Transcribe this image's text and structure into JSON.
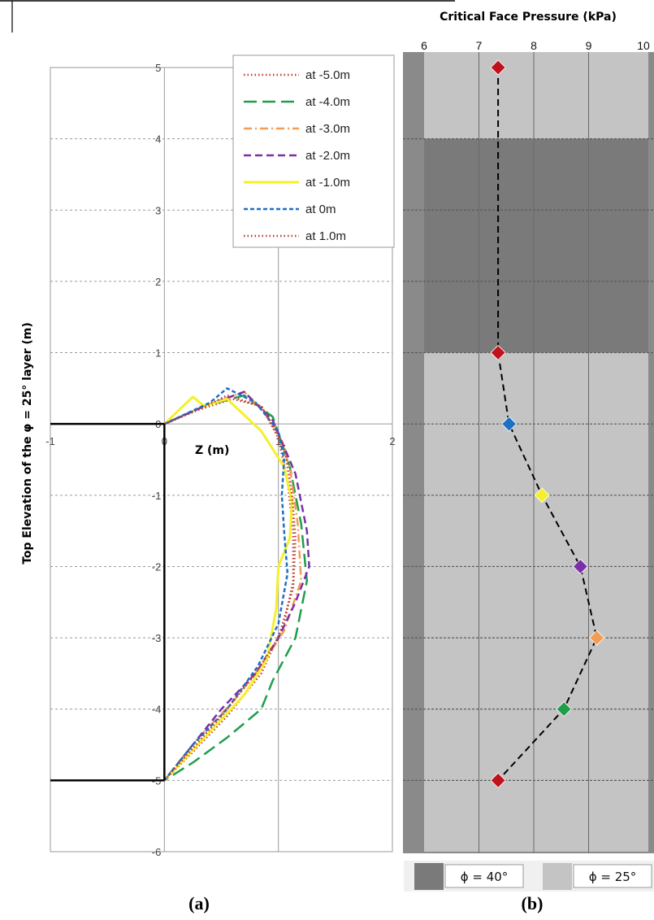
{
  "panel_labels": {
    "a": "(a)",
    "b": "(b)"
  },
  "chart_data": [
    {
      "type": "line",
      "panel": "a",
      "title": "",
      "xlabel": "Z (m)",
      "ylabel": "Top  Elevation  of  the  φ = 25°  layer  (m)",
      "xlim": [
        -1,
        2
      ],
      "ylim": [
        -6,
        5
      ],
      "x_ticks": [
        "-1",
        "0",
        "1",
        "2"
      ],
      "y_ticks": [
        "5",
        "4",
        "3",
        "2",
        "1",
        "0",
        "-1",
        "-2",
        "-3",
        "-4",
        "-5",
        "-6"
      ],
      "grid": true,
      "legend_position": "top-right",
      "tunnel_outline": {
        "face_top": 0,
        "face_bottom": -5,
        "axis_x": 0
      },
      "series": [
        {
          "name": "at -5.0m",
          "color": "#c0392b",
          "dash": "dotted",
          "points": [
            [
              0,
              0
            ],
            [
              0.3,
              0.2
            ],
            [
              0.6,
              0.35
            ],
            [
              0.85,
              0.25
            ],
            [
              1.0,
              -0.2
            ],
            [
              1.08,
              -0.8
            ],
            [
              1.13,
              -1.5
            ],
            [
              1.13,
              -2.2
            ],
            [
              1.05,
              -2.8
            ],
            [
              0.85,
              -3.5
            ],
            [
              0.55,
              -4.1
            ],
            [
              0.25,
              -4.6
            ],
            [
              0,
              -5
            ]
          ]
        },
        {
          "name": "at -4.0m",
          "color": "#1f9e4a",
          "dash": "longdash",
          "points": [
            [
              0,
              0
            ],
            [
              0.35,
              0.25
            ],
            [
              0.7,
              0.4
            ],
            [
              0.95,
              0.1
            ],
            [
              1.1,
              -0.6
            ],
            [
              1.2,
              -1.4
            ],
            [
              1.25,
              -2.2
            ],
            [
              1.15,
              -3.0
            ],
            [
              0.95,
              -3.6
            ],
            [
              0.85,
              -4.0
            ],
            [
              0.55,
              -4.4
            ],
            [
              0.25,
              -4.75
            ],
            [
              0,
              -5
            ]
          ]
        },
        {
          "name": "at -3.0m",
          "color": "#f39c55",
          "dash": "dashdot",
          "points": [
            [
              0,
              0
            ],
            [
              0.35,
              0.25
            ],
            [
              0.7,
              0.45
            ],
            [
              0.95,
              0.05
            ],
            [
              1.1,
              -0.6
            ],
            [
              1.17,
              -1.4
            ],
            [
              1.2,
              -2.2
            ],
            [
              1.05,
              -2.9
            ],
            [
              0.85,
              -3.4
            ],
            [
              0.6,
              -3.9
            ],
            [
              0.3,
              -4.4
            ],
            [
              0,
              -5
            ]
          ]
        },
        {
          "name": "at -2.0m",
          "color": "#7b2fa8",
          "dash": "dashed",
          "points": [
            [
              0,
              0
            ],
            [
              0.35,
              0.25
            ],
            [
              0.7,
              0.45
            ],
            [
              0.95,
              0.05
            ],
            [
              1.15,
              -0.7
            ],
            [
              1.25,
              -1.5
            ],
            [
              1.27,
              -2.0
            ],
            [
              1.15,
              -2.5
            ],
            [
              1.0,
              -3.0
            ],
            [
              0.8,
              -3.5
            ],
            [
              0.5,
              -4.0
            ],
            [
              0.25,
              -4.5
            ],
            [
              0,
              -5
            ]
          ]
        },
        {
          "name": "at -1.0m",
          "color": "#f5f02a",
          "dash": "solid",
          "points": [
            [
              0,
              0
            ],
            [
              0.25,
              0.38
            ],
            [
              0.35,
              0.25
            ],
            [
              0.55,
              0.35
            ],
            [
              0.85,
              -0.1
            ],
            [
              1.05,
              -0.6
            ],
            [
              1.12,
              -1.1
            ],
            [
              1.1,
              -1.6
            ],
            [
              1.0,
              -2.0
            ],
            [
              0.98,
              -2.6
            ],
            [
              0.9,
              -3.3
            ],
            [
              0.7,
              -3.8
            ],
            [
              0.35,
              -4.4
            ],
            [
              0,
              -5
            ]
          ]
        },
        {
          "name": "at 0m",
          "color": "#1f6fc5",
          "dash": "shortdash",
          "points": [
            [
              0,
              0
            ],
            [
              0.4,
              0.3
            ],
            [
              0.55,
              0.5
            ],
            [
              0.8,
              0.3
            ],
            [
              1.0,
              -0.1
            ],
            [
              1.05,
              -0.5
            ],
            [
              1.03,
              -1.0
            ],
            [
              1.05,
              -1.5
            ],
            [
              1.08,
              -2.1
            ],
            [
              1.0,
              -2.8
            ],
            [
              0.82,
              -3.4
            ],
            [
              0.55,
              -4.0
            ],
            [
              0.25,
              -4.5
            ],
            [
              0,
              -5
            ]
          ]
        },
        {
          "name": "at 1.0m",
          "color": "#c0392b",
          "dash": "dotted",
          "points": [
            [
              0,
              0
            ],
            [
              0.3,
              0.2
            ],
            [
              0.55,
              0.4
            ],
            [
              0.85,
              0.25
            ],
            [
              1.05,
              -0.3
            ],
            [
              1.12,
              -1.0
            ],
            [
              1.15,
              -1.6
            ],
            [
              1.13,
              -2.3
            ],
            [
              1.0,
              -3.0
            ],
            [
              0.8,
              -3.5
            ],
            [
              0.5,
              -4.1
            ],
            [
              0.25,
              -4.55
            ],
            [
              0,
              -5
            ]
          ]
        }
      ]
    },
    {
      "type": "line",
      "panel": "b",
      "title": "Critical Face Pressure (kPa)",
      "xlabel": "Critical Face Pressure (kPa)",
      "ylabel": "",
      "xlim": [
        6,
        10
      ],
      "ylim": [
        -6,
        5
      ],
      "x_ticks": [
        "6",
        "7",
        "8",
        "9",
        "10"
      ],
      "grid": true,
      "dash": "dashed",
      "line_color": "#000000",
      "points": [
        {
          "x": 7.35,
          "y": 5,
          "color": "#c0121d"
        },
        {
          "x": 7.35,
          "y": 1,
          "color": "#c0121d"
        },
        {
          "x": 7.55,
          "y": 0,
          "color": "#1f6fc5"
        },
        {
          "x": 8.15,
          "y": -1,
          "color": "#f5f02a"
        },
        {
          "x": 8.85,
          "y": -2,
          "color": "#7b2fa8"
        },
        {
          "x": 9.15,
          "y": -3,
          "color": "#f39c55"
        },
        {
          "x": 8.55,
          "y": -4,
          "color": "#1f9e4a"
        },
        {
          "x": 7.35,
          "y": -5,
          "color": "#c0121d"
        }
      ],
      "soil_bands": [
        {
          "y_top": 5,
          "y_bottom": 4,
          "layer": "25"
        },
        {
          "y_top": 4,
          "y_bottom": 1,
          "layer": "40"
        },
        {
          "y_top": 1,
          "y_bottom": -6,
          "layer": "25"
        }
      ],
      "legend": [
        {
          "label": "ϕ = 40°",
          "color": "#7a7a7a"
        },
        {
          "label": "ϕ = 25°",
          "color": "#c4c4c4"
        }
      ],
      "legend_position": "bottom"
    }
  ]
}
